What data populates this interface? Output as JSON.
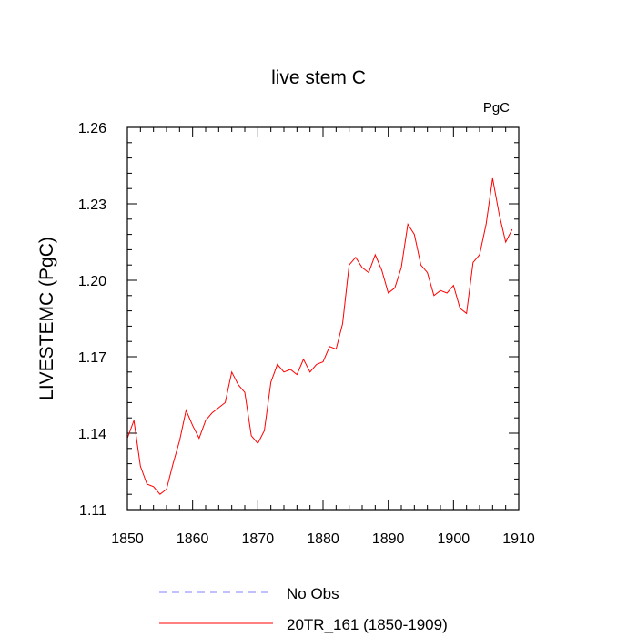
{
  "chart_data": {
    "type": "line",
    "title": "live stem C",
    "units": "PgC",
    "xlabel": "",
    "ylabel": "LIVESTEMC  (PgC)",
    "xlim": [
      1850,
      1910
    ],
    "ylim": [
      1.11,
      1.26
    ],
    "xticks": [
      1850,
      1860,
      1870,
      1880,
      1890,
      1900,
      1910
    ],
    "xtick_labels": [
      "1850",
      "1860",
      "1870",
      "1880",
      "1890",
      "1900",
      "1910"
    ],
    "yticks": [
      1.11,
      1.14,
      1.17,
      1.2,
      1.23,
      1.26
    ],
    "ytick_labels": [
      "1.11",
      "1.14",
      "1.17",
      "1.20",
      "1.23",
      "1.26"
    ],
    "grid": false,
    "legend_position": "bottom",
    "series": [
      {
        "name": "No Obs",
        "color": "#8080ff",
        "style": "dashed",
        "x": [],
        "values": []
      },
      {
        "name": "20TR_161 (1850-1909)",
        "color": "#ff0000",
        "style": "solid",
        "x": [
          1850,
          1851,
          1852,
          1853,
          1854,
          1855,
          1856,
          1857,
          1858,
          1859,
          1860,
          1861,
          1862,
          1863,
          1864,
          1865,
          1866,
          1867,
          1868,
          1869,
          1870,
          1871,
          1872,
          1873,
          1874,
          1875,
          1876,
          1877,
          1878,
          1879,
          1880,
          1881,
          1882,
          1883,
          1884,
          1885,
          1886,
          1887,
          1888,
          1889,
          1890,
          1891,
          1892,
          1893,
          1894,
          1895,
          1896,
          1897,
          1898,
          1899,
          1900,
          1901,
          1902,
          1903,
          1904,
          1905,
          1906,
          1907,
          1908,
          1909
        ],
        "values": [
          1.138,
          1.145,
          1.127,
          1.12,
          1.119,
          1.116,
          1.118,
          1.128,
          1.137,
          1.149,
          1.143,
          1.138,
          1.145,
          1.148,
          1.15,
          1.152,
          1.164,
          1.159,
          1.156,
          1.139,
          1.136,
          1.141,
          1.16,
          1.167,
          1.164,
          1.165,
          1.163,
          1.169,
          1.164,
          1.167,
          1.168,
          1.174,
          1.173,
          1.183,
          1.206,
          1.209,
          1.205,
          1.203,
          1.21,
          1.204,
          1.195,
          1.197,
          1.205,
          1.222,
          1.218,
          1.206,
          1.203,
          1.194,
          1.196,
          1.195,
          1.198,
          1.189,
          1.187,
          1.207,
          1.21,
          1.222,
          1.24,
          1.226,
          1.215,
          1.22
        ]
      }
    ]
  }
}
